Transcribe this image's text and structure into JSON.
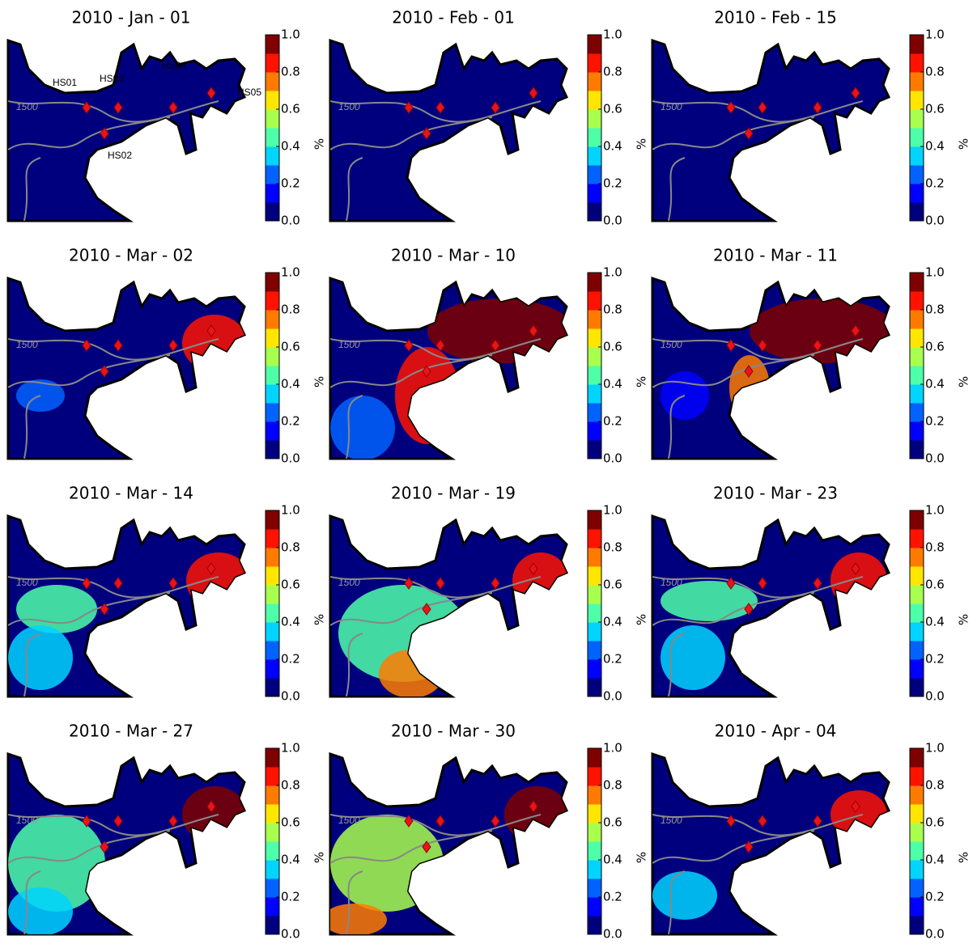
{
  "panels": [
    {
      "title": "2010 - Jan - 01"
    },
    {
      "title": "2010 - Feb - 01"
    },
    {
      "title": "2010 - Feb - 15"
    },
    {
      "title": "2010 - Mar - 02"
    },
    {
      "title": "2010 - Mar - 10"
    },
    {
      "title": "2010 - Mar - 11"
    },
    {
      "title": "2010 - Mar - 14"
    },
    {
      "title": "2010 - Mar - 19"
    },
    {
      "title": "2010 - Mar - 23"
    },
    {
      "title": "2010 - Mar - 27"
    },
    {
      "title": "2010 - Mar - 30"
    },
    {
      "title": "2010 - Apr - 04"
    }
  ],
  "stations": [
    {
      "label": "HS01"
    },
    {
      "label": "HS02"
    },
    {
      "label": "HS03"
    },
    {
      "label": "HS04"
    },
    {
      "label": "HS05"
    }
  ],
  "contour_label": "1500",
  "colorbar": {
    "label": "%",
    "lim": [
      0,
      1
    ],
    "ticks": [
      {
        "value": 0,
        "label": "0.0"
      },
      {
        "value": 0.2,
        "label": "0.2"
      },
      {
        "value": 0.4,
        "label": "0.4"
      },
      {
        "value": 0.6,
        "label": "0.6"
      },
      {
        "value": 0.8,
        "label": "0.8"
      },
      {
        "value": 1,
        "label": "1.0"
      }
    ],
    "colors": [
      "#00007f",
      "#0000ff",
      "#0063ff",
      "#00d4ff",
      "#4effa9",
      "#a9ff4e",
      "#ffe600",
      "#ff7b00",
      "#ff1300",
      "#7f0000"
    ]
  }
}
